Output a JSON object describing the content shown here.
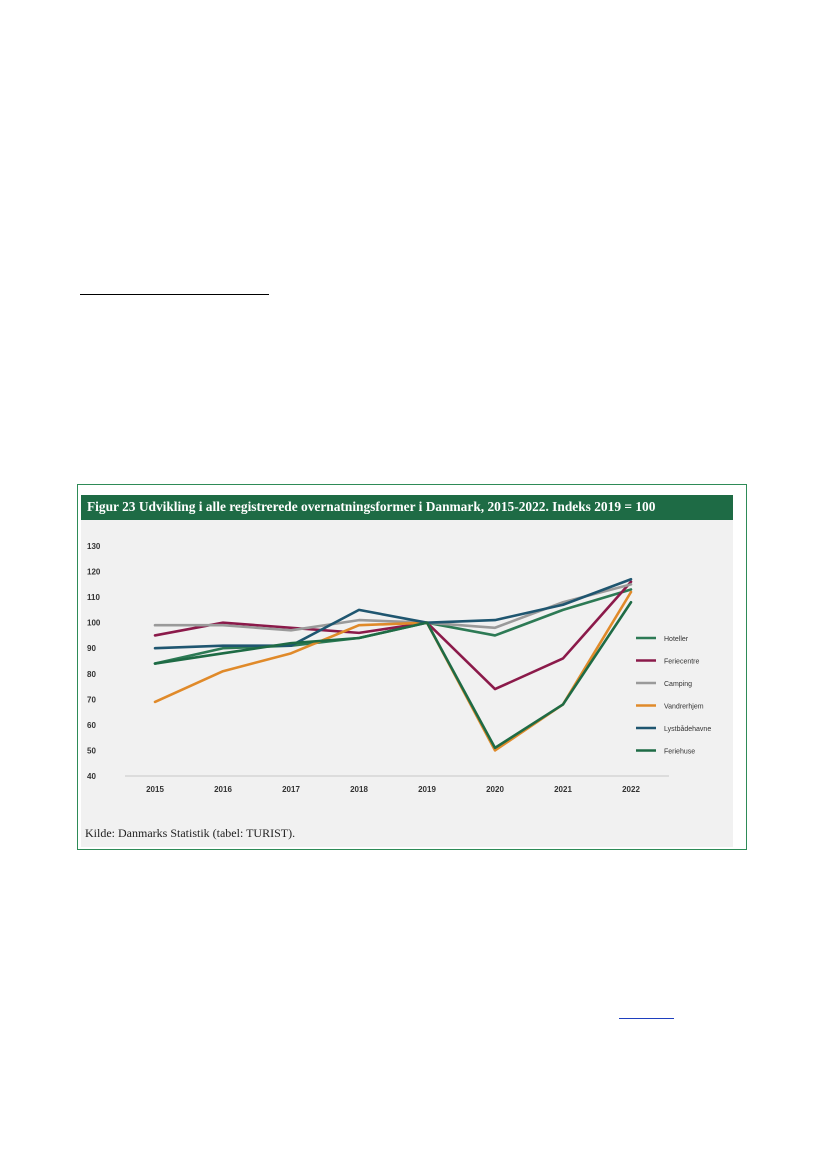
{
  "figure": {
    "title": "Figur 23 Udvikling i alle registrerede overnatningsformer i Danmark, 2015-2022. Indeks 2019 = 100",
    "source": "Kilde: Danmarks Statistik (tabel: TURIST)."
  },
  "chart_data": {
    "type": "line",
    "x": [
      "2015",
      "2016",
      "2017",
      "2018",
      "2019",
      "2020",
      "2021",
      "2022"
    ],
    "ylim": [
      40,
      130
    ],
    "yticks": [
      40,
      50,
      60,
      70,
      80,
      90,
      100,
      110,
      120,
      130
    ],
    "grid": false,
    "legend_position": "right",
    "series": [
      {
        "name": "Hoteller",
        "color": "#2d7a55",
        "values": [
          84,
          90,
          91,
          94,
          100,
          95,
          105,
          113
        ]
      },
      {
        "name": "Feriecentre",
        "color": "#8b1a4a",
        "values": [
          95,
          100,
          98,
          96,
          100,
          74,
          86,
          116
        ]
      },
      {
        "name": "Camping",
        "color": "#9a9a9a",
        "values": [
          99,
          99,
          97,
          101,
          100,
          98,
          108,
          115
        ]
      },
      {
        "name": "Vandrerhjem",
        "color": "#e08a2a",
        "values": [
          69,
          81,
          88,
          99,
          100,
          50,
          68,
          112
        ]
      },
      {
        "name": "Lystbådehavne",
        "color": "#1f5670",
        "values": [
          90,
          91,
          91,
          105,
          100,
          101,
          107,
          117
        ]
      },
      {
        "name": "Feriehuse",
        "color": "#1e6b45",
        "values": [
          84,
          88,
          92,
          94,
          100,
          51,
          68,
          108
        ]
      }
    ]
  }
}
